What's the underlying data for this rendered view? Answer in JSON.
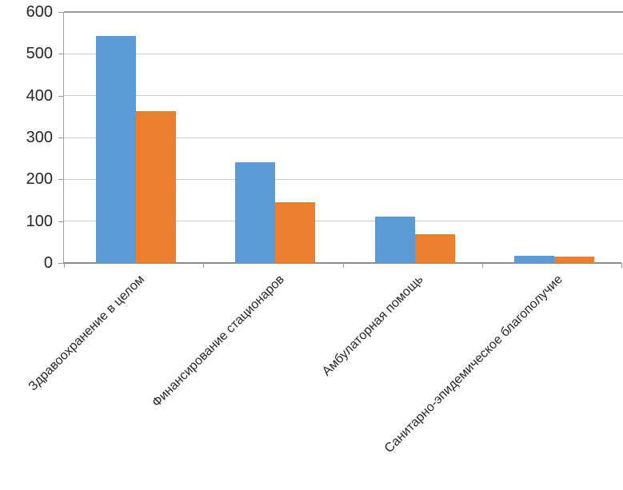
{
  "chart_data": {
    "type": "bar",
    "title": "",
    "xlabel": "",
    "ylabel": "",
    "categories": [
      "Здравоохранение в целом",
      "Финансирование стационаров",
      "Амбулаторная помощь",
      "Санитарно-эпидемическое благополучие"
    ],
    "series": [
      {
        "name": "series1",
        "color": "#5B9BD5",
        "values": [
          543,
          240,
          111,
          18
        ]
      },
      {
        "name": "series2",
        "color": "#ED7D31",
        "values": [
          363,
          145,
          68,
          15
        ]
      }
    ],
    "ylim": [
      0,
      600
    ],
    "yticks": [
      0,
      100,
      200,
      300,
      400,
      500,
      600
    ],
    "grid": true,
    "legend": false,
    "category_label_rotation_deg": -45
  }
}
